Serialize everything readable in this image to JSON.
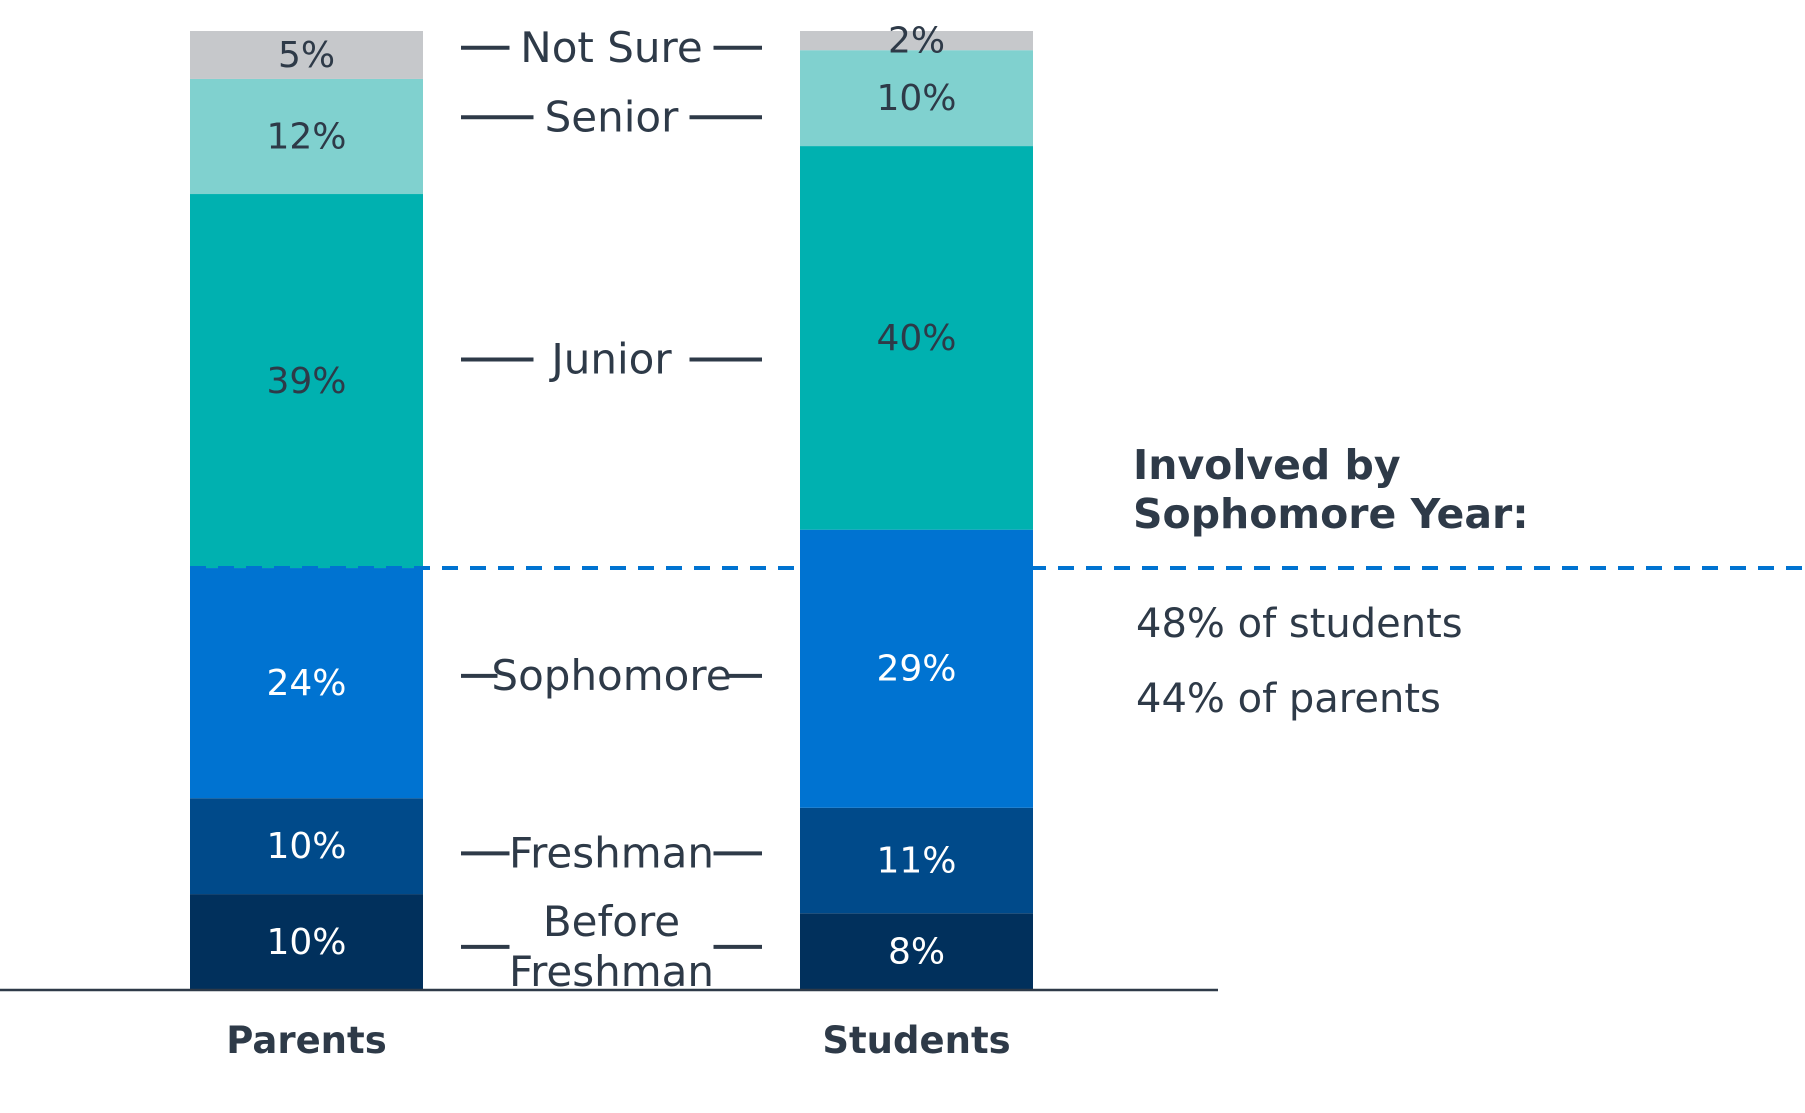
{
  "chart_data": {
    "type": "bar",
    "stacked": true,
    "categories": [
      "Parents",
      "Students"
    ],
    "series": [
      {
        "name": "Before Freshman",
        "values": [
          10,
          8
        ],
        "color": "#01305c",
        "label_color": "#ffffff"
      },
      {
        "name": "Freshman",
        "values": [
          10,
          11
        ],
        "color": "#004a8a",
        "label_color": "#ffffff"
      },
      {
        "name": "Sophomore",
        "values": [
          24,
          29
        ],
        "color": "#0073d1",
        "label_color": "#ffffff"
      },
      {
        "name": "Junior",
        "values": [
          39,
          40
        ],
        "color": "#00b1b0",
        "label_color": "#2e3a48"
      },
      {
        "name": "Senior",
        "values": [
          12,
          10
        ],
        "color": "#80d1cf",
        "label_color": "#2e3a48"
      },
      {
        "name": "Not Sure",
        "values": [
          5,
          2
        ],
        "color": "#c6c8cb",
        "label_color": "#2e3a48"
      }
    ],
    "value_suffix": "%",
    "legend_placement": "between bars",
    "reference_line": {
      "after_series": "Sophomore",
      "color": "#0073d1",
      "style": "dashed"
    },
    "annotation": {
      "title_lines": [
        "Involved by",
        "Sophomore Year:"
      ],
      "lines": [
        "48% of students",
        "44% of parents"
      ]
    },
    "title": "",
    "xlabel": "",
    "ylabel": "",
    "grid": false
  }
}
